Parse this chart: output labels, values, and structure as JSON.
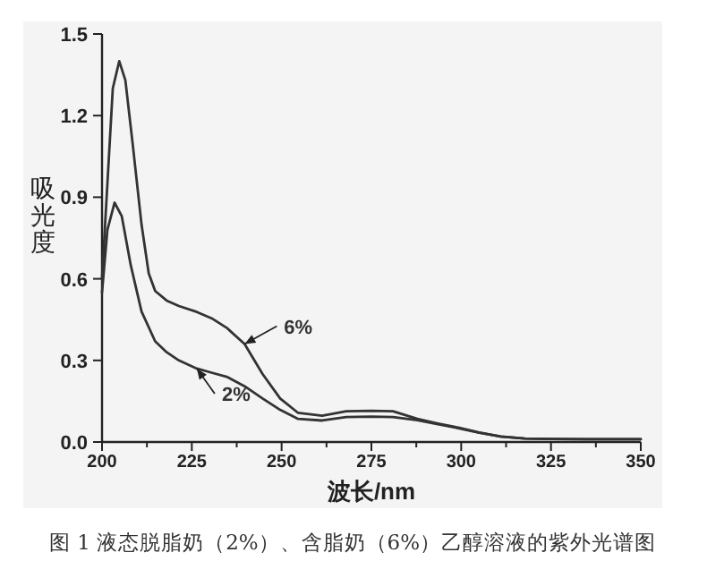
{
  "chart_data": {
    "type": "line",
    "xlabel": "波长/nm",
    "ylabel": "吸光度",
    "annotations": [
      "图 1 液态脱脂奶（2%）、含脂奶（6%）乙醇溶液的紫外光谱图"
    ],
    "xlim": [
      200,
      350
    ],
    "ylim": [
      0,
      1.5
    ],
    "xticks": [
      200,
      {
        "value": 212.5,
        "label": null
      },
      225,
      {
        "value": 237.5,
        "label": null
      },
      250,
      {
        "value": 262.5,
        "label": null
      },
      275,
      {
        "value": 287.5,
        "label": null
      },
      300,
      {
        "value": 312.5,
        "label": null
      },
      325,
      {
        "value": 337.5,
        "label": null
      },
      350
    ],
    "yticks": [
      {
        "value": 0,
        "label": "0.0"
      },
      0.3,
      0.6,
      0.9,
      1.2,
      1.5
    ],
    "grid": false,
    "legend": false,
    "series": [
      {
        "name": "6%",
        "color": "#333333",
        "x": [
          200,
          201.5,
          203,
          204.8,
          206.5,
          208.5,
          211,
          213,
          214.8,
          218,
          221.4,
          226.4,
          230.5,
          234.7,
          239.7,
          244.7,
          249.6,
          254.6,
          261.3,
          268,
          275,
          281,
          287.8,
          293.5,
          299.5,
          305,
          311,
          317.7,
          325,
          335,
          350
        ],
        "values": [
          0.6,
          0.95,
          1.3,
          1.4,
          1.33,
          1.1,
          0.8,
          0.62,
          0.555,
          0.52,
          0.5,
          0.478,
          0.455,
          0.42,
          0.36,
          0.25,
          0.16,
          0.107,
          0.097,
          0.113,
          0.115,
          0.113,
          0.085,
          0.068,
          0.052,
          0.035,
          0.02,
          0.013,
          0.011,
          0.01,
          0.01
        ]
      },
      {
        "name": "2%",
        "color": "#333333",
        "x": [
          200,
          201.5,
          203.5,
          205.5,
          208,
          211,
          214.8,
          218,
          221.4,
          226.4,
          230.5,
          234.7,
          239.7,
          244.7,
          249.6,
          254.6,
          261.3,
          268,
          275,
          281,
          287.8,
          293.5,
          299.5,
          305,
          311,
          317.7,
          325,
          335,
          350
        ],
        "values": [
          0.55,
          0.78,
          0.88,
          0.83,
          0.65,
          0.48,
          0.37,
          0.33,
          0.3,
          0.27,
          0.255,
          0.24,
          0.205,
          0.16,
          0.118,
          0.085,
          0.079,
          0.092,
          0.093,
          0.092,
          0.08,
          0.065,
          0.05,
          0.034,
          0.02,
          0.013,
          0.011,
          0.01,
          0.01
        ]
      }
    ]
  }
}
